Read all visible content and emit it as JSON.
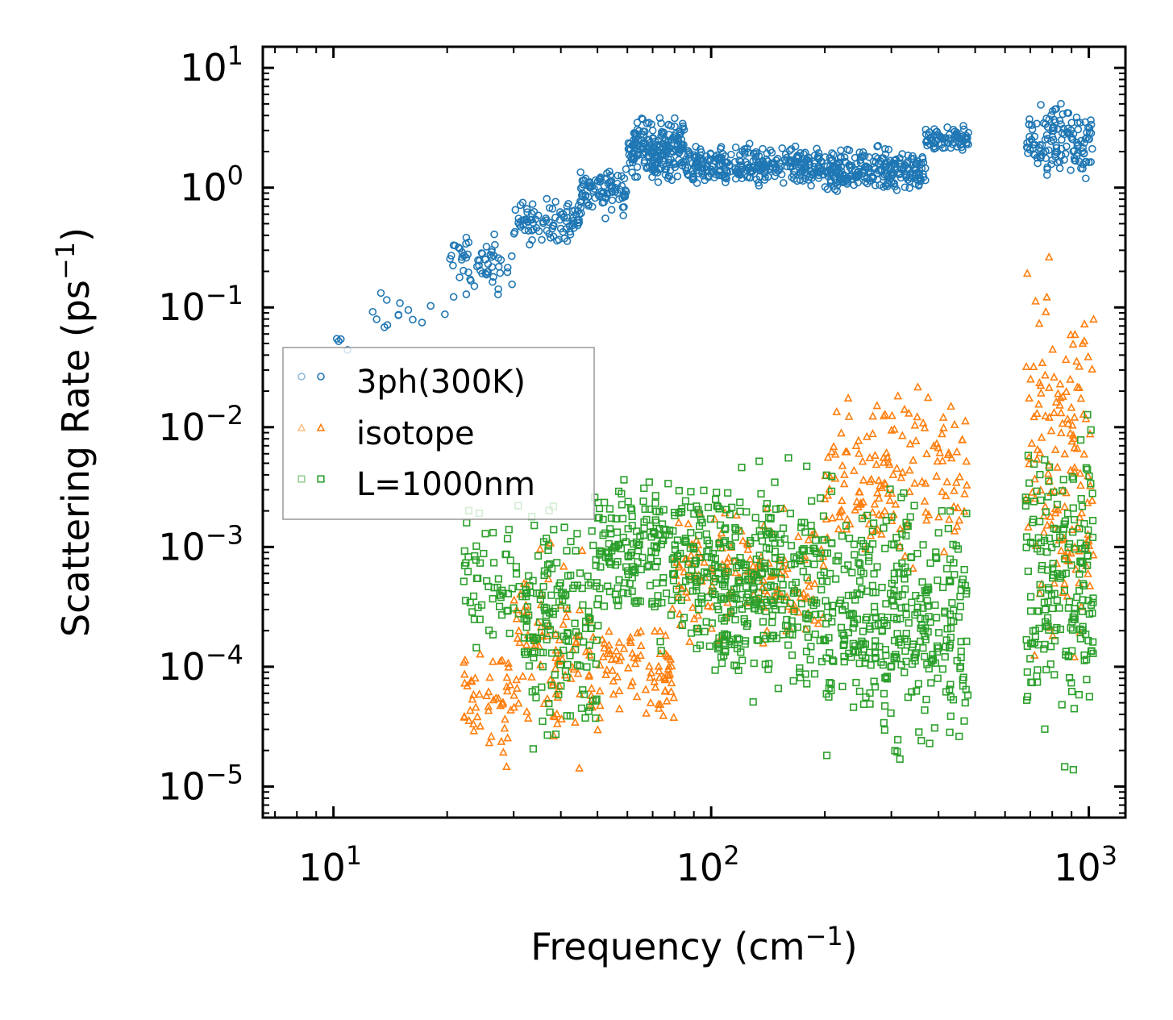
{
  "chart_data": {
    "type": "scatter",
    "title": "",
    "xlabel": {
      "text": "Frequency (cm",
      "sup": "−1",
      "close": ")"
    },
    "ylabel": {
      "text": "Scattering Rate (ps",
      "sup": "−1",
      "close": ")"
    },
    "xscale": "log",
    "yscale": "log",
    "xlim": [
      6.5,
      1250
    ],
    "ylim": [
      5.5e-06,
      15
    ],
    "x_ticks": [
      {
        "value": 10,
        "base": "10",
        "exp": "1"
      },
      {
        "value": 100,
        "base": "10",
        "exp": "2"
      },
      {
        "value": 1000,
        "base": "10",
        "exp": "3"
      }
    ],
    "y_ticks": [
      {
        "value": 1e-05,
        "base": "10",
        "exp": "−5"
      },
      {
        "value": 0.0001,
        "base": "10",
        "exp": "−4"
      },
      {
        "value": 0.001,
        "base": "10",
        "exp": "−3"
      },
      {
        "value": 0.01,
        "base": "10",
        "exp": "−2"
      },
      {
        "value": 0.1,
        "base": "10",
        "exp": "−1"
      },
      {
        "value": 1,
        "base": "10",
        "exp": "0"
      },
      {
        "value": 10,
        "base": "10",
        "exp": "1"
      }
    ],
    "legend_position": "center-left",
    "series": [
      {
        "name": "3ph(300K)",
        "marker": "circle",
        "color": "#1f77b4",
        "bands": [
          {
            "x": [
              7.5,
              12
            ],
            "y": [
              0.035,
              0.07
            ],
            "n": 4
          },
          {
            "x": [
              12,
              20
            ],
            "y": [
              0.05,
              0.16
            ],
            "n": 14
          },
          {
            "x": [
              20,
              30
            ],
            "y": [
              0.1,
              0.5
            ],
            "n": 60
          },
          {
            "x": [
              30,
              45
            ],
            "y": [
              0.3,
              0.9
            ],
            "n": 90
          },
          {
            "x": [
              45,
              60
            ],
            "y": [
              0.5,
              1.8
            ],
            "n": 90
          },
          {
            "x": [
              60,
              85
            ],
            "y": [
              1.0,
              4.5
            ],
            "n": 220
          },
          {
            "x": [
              85,
              200
            ],
            "y": [
              0.9,
              2.5
            ],
            "n": 300
          },
          {
            "x": [
              200,
              370
            ],
            "y": [
              0.8,
              2.4
            ],
            "n": 250
          },
          {
            "x": [
              370,
              480
            ],
            "y": [
              1.8,
              3.8
            ],
            "n": 80
          },
          {
            "x": [
              680,
              1030
            ],
            "y": [
              0.9,
              6.5
            ],
            "n": 140
          }
        ]
      },
      {
        "name": "isotope",
        "marker": "triangle",
        "color": "#ff7f0e",
        "bands": [
          {
            "x": [
              22,
              30
            ],
            "y": [
              1e-05,
              0.0003
            ],
            "n": 50
          },
          {
            "x": [
              30,
              48
            ],
            "y": [
              1e-05,
              0.0018
            ],
            "n": 90
          },
          {
            "x": [
              48,
              80
            ],
            "y": [
              2e-05,
              0.0004
            ],
            "n": 90
          },
          {
            "x": [
              80,
              200
            ],
            "y": [
              0.0001,
              0.003
            ],
            "n": 150
          },
          {
            "x": [
              200,
              480
            ],
            "y": [
              0.0005,
              0.04
            ],
            "n": 160
          },
          {
            "x": [
              680,
              1030
            ],
            "y": [
              3e-05,
              0.5
            ],
            "n": 150
          }
        ]
      },
      {
        "name": "L=1000nm",
        "marker": "square",
        "color": "#2ca02c",
        "bands": [
          {
            "x": [
              22,
              32
            ],
            "y": [
              0.0001,
              0.003
            ],
            "n": 60
          },
          {
            "x": [
              32,
              50
            ],
            "y": [
              1.1e-05,
              0.005
            ],
            "n": 160
          },
          {
            "x": [
              50,
              90
            ],
            "y": [
              0.0001,
              0.008
            ],
            "n": 200
          },
          {
            "x": [
              90,
              200
            ],
            "y": [
              3e-05,
              0.008
            ],
            "n": 360
          },
          {
            "x": [
              200,
              480
            ],
            "y": [
              1.1e-05,
              0.006
            ],
            "n": 360
          },
          {
            "x": [
              680,
              1030
            ],
            "y": [
              1.1e-05,
              0.02
            ],
            "n": 200
          }
        ]
      }
    ]
  }
}
